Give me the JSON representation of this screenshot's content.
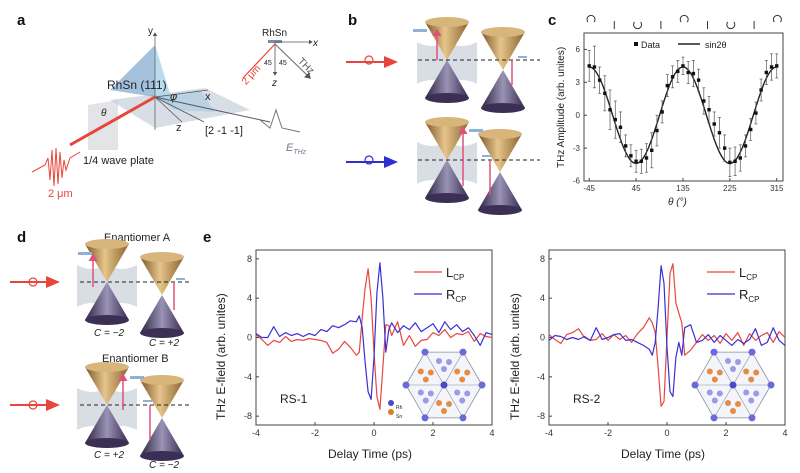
{
  "panels": {
    "a": {
      "label": "a",
      "axis_y": "y",
      "axis_x": "x",
      "axis_z": "z",
      "surface": "RhSn  (111)",
      "phi": "φ",
      "theta": "θ",
      "direction": "[2 -1 -1]",
      "waveplate": "1/4 wave plate",
      "wavelength": "2 μm",
      "ethz": "E",
      "ethz_sub": "THz",
      "inset": {
        "sample": "RhSn",
        "x": "x",
        "z": "z",
        "angle1": "45",
        "angle2": "45",
        "beam_in": "2 μm",
        "beam_out": "THz"
      }
    },
    "b": {
      "label": "b"
    },
    "c": {
      "label": "c"
    },
    "d": {
      "label": "d",
      "enantiomer_a": "Enantiomer  A",
      "enantiomer_b": "Enantiomer  B",
      "a_left_chern": "C = −2",
      "a_right_chern": "C = +2",
      "b_left_chern": "C = +2",
      "b_right_chern": "C = −2"
    },
    "e": {
      "label": "e"
    }
  },
  "colors": {
    "lcp": "#e8463c",
    "rcp": "#3a2fd6",
    "beam": "#e8463c",
    "cone_gold": "#b98a4a",
    "cone_purple": "#4a3f66"
  },
  "chart_data": [
    {
      "type": "scatter",
      "panel": "c",
      "ylabel": "THz Amplitude (arb. unites)",
      "xlabel": "θ (°)",
      "xticks": [
        -45,
        45,
        135,
        225,
        315
      ],
      "yticks": [
        -6,
        -3,
        0,
        3,
        6
      ],
      "xlim": [
        -55,
        327
      ],
      "ylim": [
        -6,
        7.5
      ],
      "grid": false,
      "legend_position": "top",
      "top_polarization_icons": [
        "ccw-circular-icon",
        "linear-icon",
        "cw-circular-icon",
        "linear-icon",
        "ccw-circular-icon",
        "linear-icon",
        "cw-circular-icon",
        "linear-icon",
        "ccw-circular-icon"
      ],
      "series": [
        {
          "name": "Data",
          "x": [
            -45,
            -35,
            -25,
            -15,
            -5,
            5,
            15,
            25,
            35,
            45,
            55,
            65,
            75,
            85,
            95,
            105,
            115,
            125,
            135,
            145,
            155,
            165,
            175,
            185,
            195,
            205,
            215,
            225,
            235,
            245,
            255,
            265,
            275,
            285,
            295,
            305,
            315
          ],
          "y": [
            4.5,
            4.4,
            3.2,
            2.0,
            0.5,
            -0.4,
            -1.1,
            -2.8,
            -3.7,
            -4.2,
            -4.2,
            -3.9,
            -3.2,
            -1.4,
            0.3,
            2.7,
            3.5,
            4.0,
            4.5,
            3.9,
            3.8,
            3.2,
            1.3,
            0.5,
            -0.8,
            -1.6,
            -3.0,
            -4.3,
            -4.2,
            -3.9,
            -2.8,
            -1.3,
            0.2,
            2.3,
            3.9,
            4.4,
            4.5
          ],
          "error": [
            1.4,
            1.9,
            1.2,
            1.6,
            1.8,
            1.7,
            1.4,
            1.0,
            1.0,
            1.0,
            1.1,
            1.3,
            1.6,
            1.4,
            1.0,
            1.0,
            1.0,
            1.0,
            0.8,
            1.0,
            1.2,
            1.0,
            1.2,
            1.2,
            1.1,
            1.4,
            1.2,
            1.3,
            1.3,
            1.2,
            1.0,
            1.0,
            1.0,
            1.0,
            1.1,
            1.2,
            1.1
          ]
        },
        {
          "name": "sin2θ",
          "kind": "fit",
          "amplitude": -4.4
        }
      ]
    },
    {
      "type": "line",
      "panel": "e",
      "annotation": "RS-1",
      "ylabel": "THz E-field (arb. unites)",
      "xlabel": "Delay Time (ps)",
      "xticks": [
        -4,
        -2,
        0,
        2,
        4
      ],
      "yticks": [
        -8,
        -4,
        0,
        4,
        8
      ],
      "xlim": [
        -4,
        4
      ],
      "ylim": [
        -8.9,
        8.9
      ],
      "legend_position": "top-right",
      "inset_legend": [
        "Rh",
        "Sn"
      ],
      "x": [
        -4,
        -3.8,
        -3.6,
        -3.4,
        -3.2,
        -3,
        -2.8,
        -2.6,
        -2.4,
        -2.2,
        -2,
        -1.8,
        -1.6,
        -1.4,
        -1.2,
        -1,
        -0.8,
        -0.6,
        -0.5,
        -0.4,
        -0.3,
        -0.2,
        -0.1,
        0,
        0.1,
        0.2,
        0.3,
        0.4,
        0.5,
        0.6,
        0.8,
        1,
        1.2,
        1.4,
        1.6,
        1.8,
        2,
        2.2,
        2.4,
        2.6,
        2.8,
        3,
        3.2,
        3.4,
        3.6,
        3.8,
        4
      ],
      "series": [
        {
          "name": "L",
          "sub": "CP",
          "color": "#e8463c",
          "values": [
            0.3,
            -0.2,
            -0.8,
            -0.3,
            -0.5,
            0.1,
            -0.4,
            -0.2,
            -0.3,
            -0.1,
            -0.2,
            -0.3,
            -0.5,
            -1.6,
            -1.2,
            -0.4,
            -1.0,
            -1.8,
            -1.5,
            2.0,
            5.0,
            7.0,
            4.0,
            -1.5,
            -6.0,
            -7.3,
            -3.0,
            1.3,
            1.2,
            0.2,
            1.6,
            -0.8,
            0.2,
            -0.9,
            -0.3,
            -0.2,
            0.5,
            0.2,
            0.8,
            0.0,
            0.4,
            0.3,
            0.6,
            -0.4,
            0.4,
            0.1,
            0.0
          ]
        },
        {
          "name": "R",
          "sub": "CP",
          "color": "#3a2fd6",
          "values": [
            0.4,
            0.0,
            0.0,
            1.1,
            0.1,
            0.5,
            0.2,
            0.4,
            0.1,
            0.4,
            0.2,
            0.8,
            0.6,
            1.2,
            1.0,
            1.3,
            1.7,
            1.6,
            2.2,
            1.0,
            -2.5,
            -5.5,
            -6.3,
            -2.0,
            4.5,
            7.6,
            4.0,
            -1.5,
            0.8,
            1.5,
            0.5,
            1.2,
            0.8,
            1.5,
            0.6,
            1.0,
            1.4,
            0.5,
            1.6,
            0.8,
            1.3,
            0.6,
            1.0,
            0.2,
            -0.8,
            0.5,
            0.3
          ]
        }
      ]
    },
    {
      "type": "line",
      "panel": "e",
      "annotation": "RS-2",
      "ylabel": "THz E-field (arb. unites)",
      "xlabel": "Delay Time (ps)",
      "xticks": [
        -4,
        -2,
        0,
        2,
        4
      ],
      "yticks": [
        -8,
        -4,
        0,
        4,
        8
      ],
      "xlim": [
        -4,
        4
      ],
      "ylim": [
        -8.9,
        8.9
      ],
      "legend_position": "top-right",
      "x": [
        -4,
        -3.8,
        -3.6,
        -3.4,
        -3.2,
        -3,
        -2.8,
        -2.6,
        -2.4,
        -2.2,
        -2,
        -1.8,
        -1.6,
        -1.4,
        -1.2,
        -1,
        -0.8,
        -0.6,
        -0.5,
        -0.4,
        -0.3,
        -0.2,
        -0.1,
        0,
        0.1,
        0.2,
        0.3,
        0.4,
        0.5,
        0.6,
        0.8,
        1,
        1.2,
        1.4,
        1.6,
        1.8,
        2,
        2.2,
        2.4,
        2.6,
        2.8,
        3,
        3.2,
        3.4,
        3.6,
        3.8,
        4
      ],
      "series": [
        {
          "name": "L",
          "sub": "CP",
          "color": "#e8463c",
          "values": [
            0.3,
            -0.2,
            -0.6,
            0.3,
            0.5,
            0.9,
            0.0,
            -0.3,
            -0.2,
            0.4,
            -0.3,
            0.3,
            -0.2,
            0.2,
            -0.5,
            0.4,
            1.0,
            2.0,
            1.5,
            0.5,
            -3.0,
            -7.0,
            -6.5,
            0.0,
            6.5,
            7.5,
            3.5,
            2.5,
            1.5,
            -1.8,
            -1.3,
            -0.5,
            0.3,
            -0.3,
            0.2,
            -0.6,
            0.4,
            -0.3,
            0.5,
            -0.8,
            0.4,
            -0.3,
            0.2,
            0.5,
            -0.5,
            0.6,
            0.0
          ]
        },
        {
          "name": "R",
          "sub": "CP",
          "color": "#3a2fd6",
          "values": [
            -0.3,
            0.2,
            0.1,
            -0.2,
            0.0,
            -0.2,
            0.1,
            -0.3,
            1.0,
            -0.2,
            0.0,
            0.3,
            0.4,
            -0.3,
            -0.2,
            -0.5,
            -0.8,
            -1.2,
            -1.8,
            -0.5,
            3.0,
            7.3,
            5.5,
            -1.0,
            -5.5,
            -6.0,
            -2.0,
            -0.5,
            -1.8,
            1.0,
            1.3,
            -0.5,
            -0.3,
            0.3,
            -0.5,
            0.2,
            -0.3,
            -0.8,
            -0.2,
            -0.6,
            -0.2,
            0.9,
            -0.8,
            -0.5,
            1.0,
            -0.3,
            -0.8
          ]
        }
      ]
    }
  ]
}
